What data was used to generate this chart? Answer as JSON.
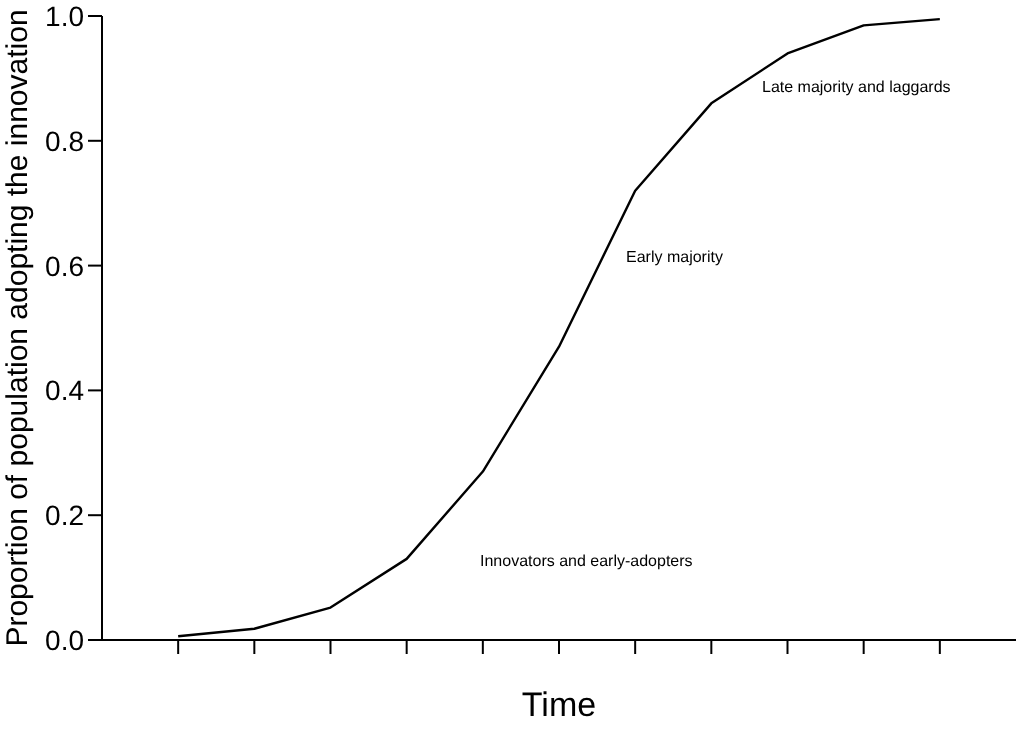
{
  "chart_data": {
    "type": "line",
    "xlabel": "Time",
    "ylabel": "Proportion of population adopting the innovation",
    "categories": [
      null,
      null,
      null,
      null,
      null,
      null,
      null,
      null,
      null,
      null,
      null
    ],
    "series": [
      {
        "color": "#000000",
        "values": [
          0.006,
          0.018,
          0.052,
          0.13,
          0.27,
          0.47,
          0.72,
          0.86,
          0.94,
          0.985,
          0.995
        ]
      }
    ],
    "ylim": [
      0,
      1
    ],
    "yticks": [
      {
        "value": 0,
        "label": "0.0"
      },
      0.2,
      0.4,
      0.6,
      0.8,
      {
        "value": 1,
        "label": "1.0"
      }
    ],
    "annotations": [
      "Late majority and laggards",
      "Early majority",
      "Innovators and early-adopters"
    ],
    "grid": false,
    "legend": false,
    "marker": "none",
    "line_style": "solid"
  }
}
